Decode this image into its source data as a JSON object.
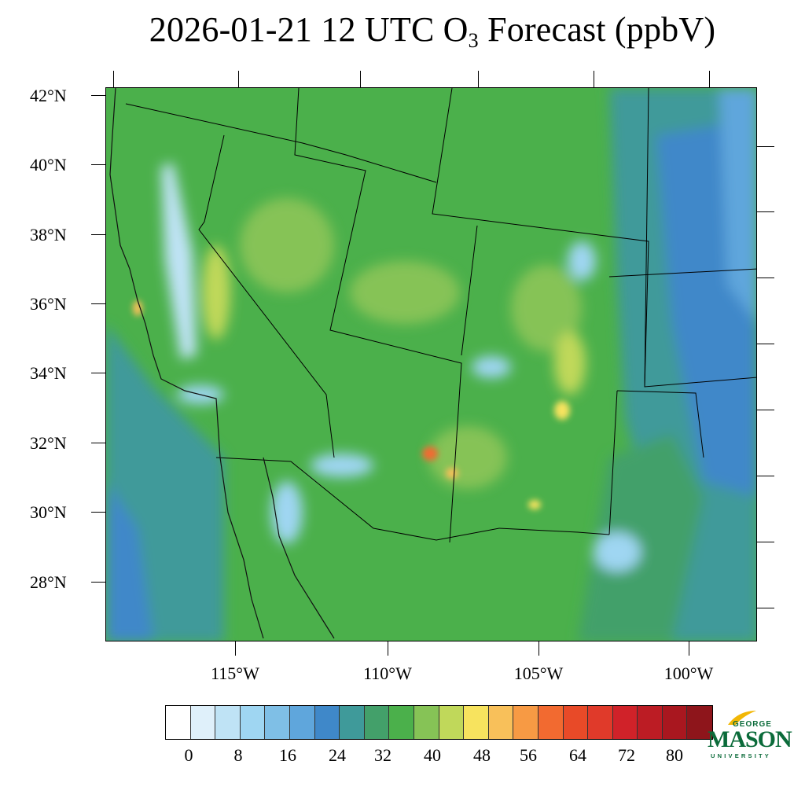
{
  "title": {
    "prefix": "2026-01-21 12 UTC O",
    "subscript": "3",
    "suffix": " Forecast (ppbV)"
  },
  "axes": {
    "latitudes": [
      "42°N",
      "40°N",
      "38°N",
      "36°N",
      "34°N",
      "32°N",
      "30°N",
      "28°N"
    ],
    "longitudes": [
      "115°W",
      "110°W",
      "105°W",
      "100°W"
    ]
  },
  "colorbar": {
    "colors": [
      "#ffffff",
      "#dff0fa",
      "#bfe3f5",
      "#9fd6f2",
      "#7fbfe6",
      "#5fa6dc",
      "#3f88c9",
      "#3f9a9a",
      "#43a06a",
      "#4bb04b",
      "#86c356",
      "#c0d85a",
      "#f7e35e",
      "#f8c05a",
      "#f79a44",
      "#f26a30",
      "#e84a28",
      "#e03a2a",
      "#d02229",
      "#bc1c24",
      "#a9171f",
      "#8e151b"
    ],
    "labels": [
      "0",
      "8",
      "16",
      "24",
      "32",
      "40",
      "48",
      "56",
      "64",
      "72",
      "80"
    ]
  },
  "logo": {
    "top": "GEORGE",
    "main": "MASON",
    "sub": "UNIVERSITY"
  }
}
